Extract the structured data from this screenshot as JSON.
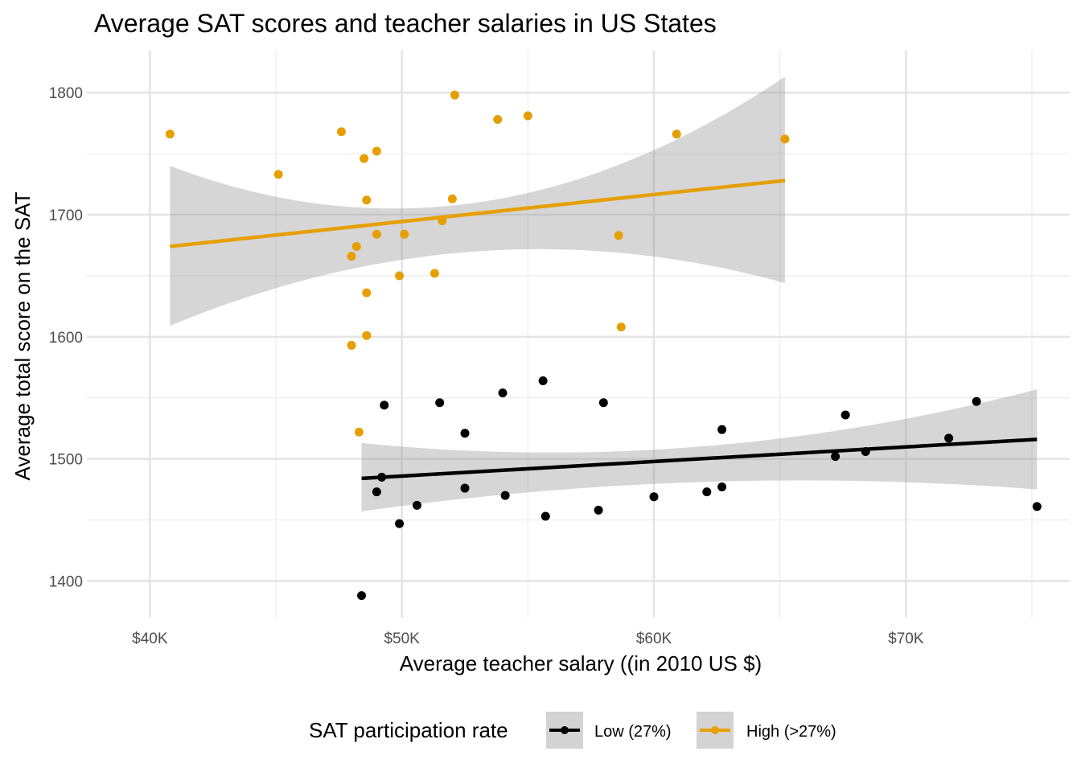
{
  "chart_data": {
    "type": "scatter",
    "title": "Average SAT scores and teacher salaries in US States",
    "xlabel": "Average teacher salary ((in 2010 US $)",
    "ylabel": "Average total score on the SAT",
    "xlim": [
      37500,
      76500
    ],
    "ylim": [
      1370,
      1835
    ],
    "x_ticks": [
      {
        "value": 40000,
        "label": "$40K"
      },
      {
        "value": 50000,
        "label": "$50K"
      },
      {
        "value": 60000,
        "label": "$60K"
      },
      {
        "value": 70000,
        "label": "$70K"
      }
    ],
    "y_ticks": [
      {
        "value": 1400,
        "label": "1400"
      },
      {
        "value": 1500,
        "label": "1500"
      },
      {
        "value": 1600,
        "label": "1600"
      },
      {
        "value": 1700,
        "label": "1700"
      },
      {
        "value": 1800,
        "label": "1800"
      }
    ],
    "grid": true,
    "legend": {
      "title": "SAT participation rate",
      "position": "bottom",
      "entries": [
        {
          "label": "Low (27%)",
          "color": "#000000"
        },
        {
          "label": "High (>27%)",
          "color": "#E69F00"
        }
      ]
    },
    "series": [
      {
        "name": "Low (27%)",
        "color": "#000000",
        "points": [
          [
            49300,
            1544
          ],
          [
            51500,
            1546
          ],
          [
            54000,
            1554
          ],
          [
            55600,
            1564
          ],
          [
            58000,
            1546
          ],
          [
            52500,
            1521
          ],
          [
            49200,
            1485
          ],
          [
            49000,
            1473
          ],
          [
            52500,
            1476
          ],
          [
            50600,
            1462
          ],
          [
            49900,
            1447
          ],
          [
            54100,
            1470
          ],
          [
            55700,
            1453
          ],
          [
            57800,
            1458
          ],
          [
            60000,
            1469
          ],
          [
            62100,
            1473
          ],
          [
            62700,
            1477
          ],
          [
            62700,
            1524
          ],
          [
            48400,
            1388
          ],
          [
            67200,
            1502
          ],
          [
            67600,
            1536
          ],
          [
            68400,
            1506
          ],
          [
            71700,
            1517
          ],
          [
            72800,
            1547
          ],
          [
            75200,
            1461
          ]
        ],
        "fit": {
          "x": [
            48400,
            75200
          ],
          "y": [
            1484,
            1516
          ],
          "ci_low_ends": [
            1457,
            1475
          ],
          "ci_high_ends": [
            1513,
            1557
          ],
          "ci_mid_low": 1481,
          "ci_mid_high": 1510
        }
      },
      {
        "name": "High (>27%)",
        "color": "#E69F00",
        "points": [
          [
            40800,
            1766
          ],
          [
            45100,
            1733
          ],
          [
            47600,
            1768
          ],
          [
            48500,
            1746
          ],
          [
            49000,
            1752
          ],
          [
            48600,
            1712
          ],
          [
            52100,
            1798
          ],
          [
            53800,
            1778
          ],
          [
            55000,
            1781
          ],
          [
            52000,
            1713
          ],
          [
            51600,
            1695
          ],
          [
            50100,
            1684
          ],
          [
            49000,
            1684
          ],
          [
            48200,
            1674
          ],
          [
            48000,
            1666
          ],
          [
            49900,
            1650
          ],
          [
            51300,
            1652
          ],
          [
            48600,
            1636
          ],
          [
            48600,
            1601
          ],
          [
            48000,
            1593
          ],
          [
            48300,
            1522
          ],
          [
            58600,
            1683
          ],
          [
            58700,
            1608
          ],
          [
            60900,
            1766
          ],
          [
            65200,
            1762
          ]
        ],
        "fit": {
          "x": [
            40800,
            65200
          ],
          "y": [
            1674,
            1728
          ],
          "ci_low_ends": [
            1609,
            1644
          ],
          "ci_high_ends": [
            1740,
            1813
          ],
          "ci_mid_low": 1670,
          "ci_mid_high": 1710
        }
      }
    ]
  }
}
